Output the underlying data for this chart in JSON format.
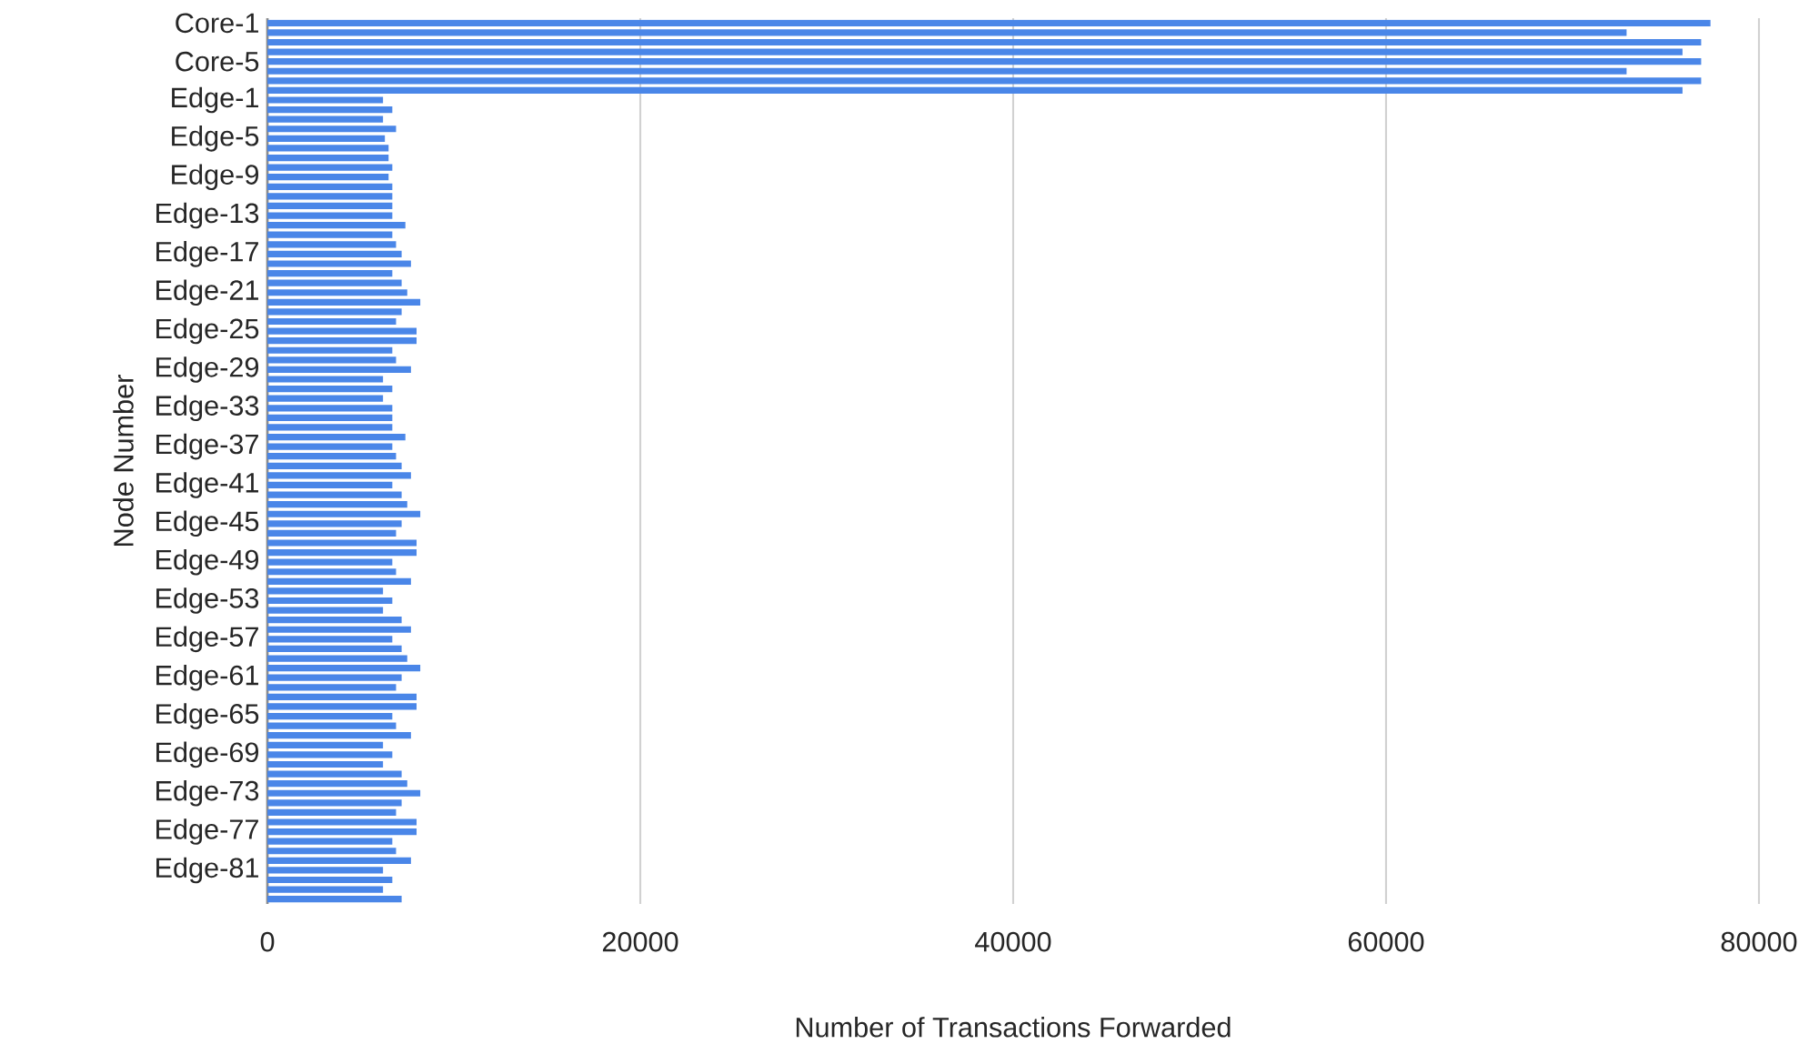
{
  "chart_data": {
    "type": "bar",
    "orientation": "horizontal",
    "xlabel": "Number of Transactions Forwarded",
    "ylabel": "Node Number",
    "categories": [
      "Core-1",
      null,
      null,
      null,
      "Core-5",
      null,
      null,
      null,
      "Edge-1",
      null,
      null,
      null,
      "Edge-5",
      null,
      null,
      null,
      "Edge-9",
      null,
      null,
      null,
      "Edge-13",
      null,
      null,
      null,
      "Edge-17",
      null,
      null,
      null,
      "Edge-21",
      null,
      null,
      null,
      "Edge-25",
      null,
      null,
      null,
      "Edge-29",
      null,
      null,
      null,
      "Edge-33",
      null,
      null,
      null,
      "Edge-37",
      null,
      null,
      null,
      "Edge-41",
      null,
      null,
      null,
      "Edge-45",
      null,
      null,
      null,
      "Edge-49",
      null,
      null,
      null,
      "Edge-53",
      null,
      null,
      null,
      "Edge-57",
      null,
      null,
      null,
      "Edge-61",
      null,
      null,
      null,
      "Edge-65",
      null,
      null,
      null,
      "Edge-69",
      null,
      null,
      null,
      "Edge-73",
      null,
      null,
      null,
      "Edge-77",
      null,
      null,
      null,
      "Edge-81",
      null,
      null,
      null
    ],
    "values": [
      77400,
      72900,
      76900,
      75900,
      76900,
      72900,
      76900,
      75900,
      6200,
      6700,
      6200,
      6900,
      6300,
      6500,
      6500,
      6700,
      6500,
      6700,
      6700,
      6700,
      6700,
      7400,
      6700,
      6900,
      7200,
      7700,
      6700,
      7200,
      7500,
      8200,
      7200,
      6900,
      8000,
      8000,
      6700,
      6900,
      7700,
      6200,
      6700,
      6200,
      6700,
      6700,
      6700,
      7400,
      6700,
      6900,
      7200,
      7700,
      6700,
      7200,
      7500,
      8200,
      7200,
      6900,
      8000,
      8000,
      6700,
      6900,
      7700,
      6200,
      6700,
      6200,
      7200,
      7700,
      6700,
      7200,
      7500,
      8200,
      7200,
      6900,
      8000,
      8000,
      6700,
      6900,
      7700,
      6200,
      6700,
      6200,
      7200,
      7500,
      8200,
      7200,
      6900,
      8000,
      8000,
      6700,
      6900,
      7700,
      6200,
      6700,
      6200,
      7200
    ],
    "color": "#4a86e8",
    "xlim": [
      0,
      80000
    ],
    "xticks": [
      0,
      20000,
      40000,
      60000,
      80000
    ],
    "grid": "x"
  }
}
